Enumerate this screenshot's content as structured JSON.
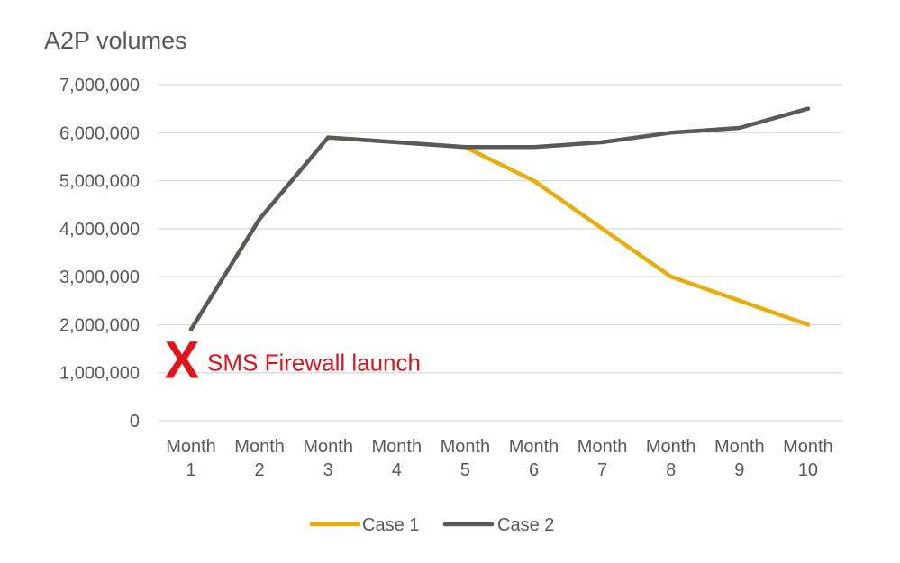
{
  "chart_data": {
    "type": "line",
    "title": "A2P volumes",
    "categories": [
      [
        "Month",
        "1"
      ],
      [
        "Month",
        "2"
      ],
      [
        "Month",
        "3"
      ],
      [
        "Month",
        "4"
      ],
      [
        "Month",
        "5"
      ],
      [
        "Month",
        "6"
      ],
      [
        "Month",
        "7"
      ],
      [
        "Month",
        "8"
      ],
      [
        "Month",
        "9"
      ],
      [
        "Month",
        "10"
      ]
    ],
    "y_ticks": [
      "0",
      "1,000,000",
      "2,000,000",
      "3,000,000",
      "4,000,000",
      "5,000,000",
      "6,000,000",
      "7,000,000"
    ],
    "ylim": [
      0,
      7000000
    ],
    "grid": true,
    "legend_position": "bottom",
    "series": [
      {
        "name": "Case 1",
        "color": "#e8ac0c",
        "values": [
          1900000,
          4200000,
          5900000,
          5800000,
          5700000,
          5000000,
          4000000,
          3000000,
          2500000,
          2000000
        ]
      },
      {
        "name": "Case 2",
        "color": "#595959",
        "values": [
          1900000,
          4200000,
          5900000,
          5800000,
          5700000,
          5700000,
          5800000,
          6000000,
          6100000,
          6500000
        ]
      }
    ],
    "annotation": {
      "marker": "X",
      "text": "SMS Firewall launch",
      "color": "#e0121a",
      "at_category_index": 0,
      "at_value": 1450000
    }
  }
}
